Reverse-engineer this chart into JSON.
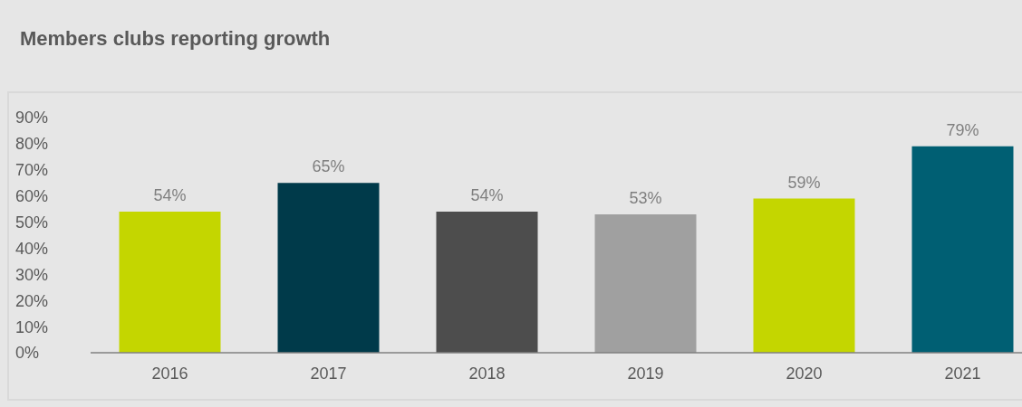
{
  "chart_data": {
    "type": "bar",
    "title": "Members clubs reporting growth",
    "categories": [
      "2016",
      "2017",
      "2018",
      "2019",
      "2020",
      "2021"
    ],
    "values": [
      54,
      65,
      54,
      53,
      59,
      79
    ],
    "colors": [
      "#c4d600",
      "#003a4a",
      "#4d4d4d",
      "#a0a0a0",
      "#c4d600",
      "#005f73"
    ],
    "value_labels": [
      "54%",
      "65%",
      "54%",
      "53%",
      "59%",
      "79%"
    ],
    "ylim": [
      0,
      90
    ],
    "yticks": [
      {
        "value": 0,
        "label": "0%"
      },
      {
        "value": 10,
        "label": "10%"
      },
      {
        "value": 20,
        "label": "20%"
      },
      {
        "value": 30,
        "label": "30%"
      },
      {
        "value": 40,
        "label": "40%"
      },
      {
        "value": 50,
        "label": "50%"
      },
      {
        "value": 60,
        "label": "60%"
      },
      {
        "value": 70,
        "label": "70%"
      },
      {
        "value": 80,
        "label": "80%"
      },
      {
        "value": 90,
        "label": "90%"
      }
    ],
    "grid": false,
    "legend": false
  }
}
